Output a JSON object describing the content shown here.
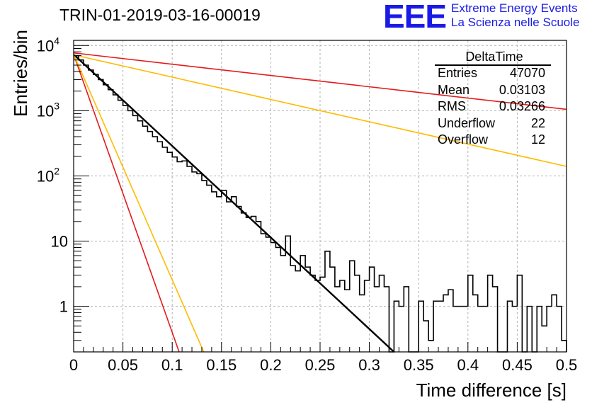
{
  "header": {
    "run_title": "TRIN-01-2019-03-16-00019",
    "logo_text": "EEE",
    "logo_line1": "Extreme Energy Events",
    "logo_line2": "La Scienza nelle Scuole"
  },
  "stats": {
    "name": "DeltaTime",
    "rows": [
      {
        "label": "Entries",
        "value": "47070"
      },
      {
        "label": "Mean",
        "value": "0.03103"
      },
      {
        "label": "RMS",
        "value": "0.03266"
      },
      {
        "label": "Underflow",
        "value": "22"
      },
      {
        "label": "Overflow",
        "value": "12"
      }
    ]
  },
  "chart_data": {
    "type": "line",
    "xlabel": "Time difference [s]",
    "ylabel": "Entries/bin",
    "xlim": [
      0,
      0.5
    ],
    "ylim": [
      0.2,
      12000
    ],
    "yscale": "log",
    "grid": true,
    "xticks": [
      "0",
      "0.05",
      "0.1",
      "0.15",
      "0.2",
      "0.25",
      "0.3",
      "0.35",
      "0.4",
      "0.45",
      "0.5"
    ],
    "yticks": [
      {
        "value": 10000,
        "base": "10",
        "exp": "4"
      },
      {
        "value": 1000,
        "base": "10",
        "exp": "3"
      },
      {
        "value": 100,
        "base": "10",
        "exp": "2"
      },
      {
        "value": 10,
        "base": "10",
        "exp": ""
      },
      {
        "value": 1,
        "base": "1",
        "exp": ""
      }
    ],
    "histogram": {
      "bin_width": 0.005,
      "color": "#000000",
      "counts": [
        7000,
        6000,
        5000,
        4200,
        3600,
        3000,
        2500,
        2100,
        1750,
        1450,
        1200,
        1000,
        840,
        700,
        580,
        480,
        400,
        335,
        275,
        230,
        195,
        165,
        170,
        140,
        115,
        108,
        85,
        72,
        57,
        48,
        60,
        40,
        48,
        34,
        27,
        23,
        24,
        20,
        13,
        11.5,
        9.5,
        8,
        6,
        12,
        4.2,
        3.5,
        6,
        4,
        3,
        2.5,
        2.8,
        7,
        4,
        2,
        2.5,
        1.8,
        5,
        3,
        1.5,
        2.5,
        4,
        2,
        3,
        2,
        0,
        1.2,
        1,
        2,
        0.2,
        0.2,
        1.2,
        0.6,
        0.3,
        1.2,
        1.2,
        1.5,
        1.8,
        1,
        1,
        1,
        3,
        1.5,
        1,
        1,
        3,
        2,
        0.2,
        0.2,
        1.2,
        1,
        3,
        0.2,
        1,
        0.2,
        1,
        0.5,
        1,
        1.5,
        1,
        0.3
      ]
    },
    "series": [
      {
        "points": [
          [
            0,
            7300
          ],
          [
            0.325,
            0.2
          ]
        ],
        "color": "#000000",
        "width": 2.4
      },
      {
        "points": [
          [
            0,
            7700
          ],
          [
            0.5,
            1050
          ]
        ],
        "color": "#e31b1b",
        "width": 1.6
      },
      {
        "points": [
          [
            0,
            7200
          ],
          [
            0.5,
            140
          ]
        ],
        "color": "#ffbb00",
        "width": 1.6
      },
      {
        "points": [
          [
            0,
            7300
          ],
          [
            0.107,
            0.2
          ]
        ],
        "color": "#e31b1b",
        "width": 1.6
      },
      {
        "points": [
          [
            0,
            7300
          ],
          [
            0.132,
            0.2
          ]
        ],
        "color": "#ffbb00",
        "width": 1.6
      }
    ]
  }
}
